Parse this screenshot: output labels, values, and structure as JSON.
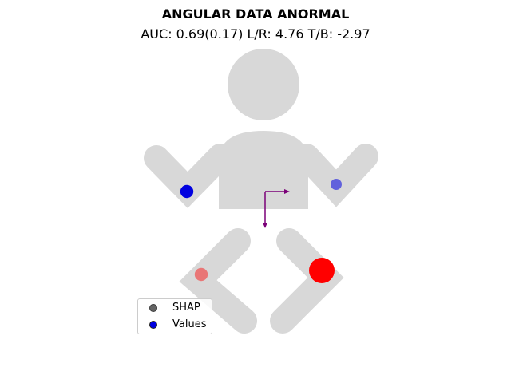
{
  "chart_data": {
    "type": "scatter",
    "title": "ANGULAR DATA ANORMAL",
    "subtitle": "AUC: 0.69(0.17) L/R: 4.76 T/B: -2.97",
    "metrics": {
      "auc": 0.69,
      "auc_sd": 0.17,
      "lr": 4.76,
      "tb": -2.97
    },
    "legend": {
      "placement": "lower-left",
      "entries": [
        {
          "label": "SHAP",
          "color": "#555555"
        },
        {
          "label": "Values",
          "color": "#0000e0"
        }
      ]
    },
    "points": [
      {
        "region": "left-arm",
        "color": "#0000e0",
        "size": 0.35,
        "shade": 1.0
      },
      {
        "region": "right-arm",
        "color": "#0000e0",
        "size": 0.25,
        "shade": 0.55
      },
      {
        "region": "left-leg",
        "color": "#ff0000",
        "size": 0.35,
        "shade": 0.45
      },
      {
        "region": "right-leg",
        "color": "#ff0000",
        "size": 1.0,
        "shade": 1.0
      }
    ],
    "arrow_color": "#7b0078",
    "silhouette_color": "#d8d8d8",
    "grid": false
  }
}
